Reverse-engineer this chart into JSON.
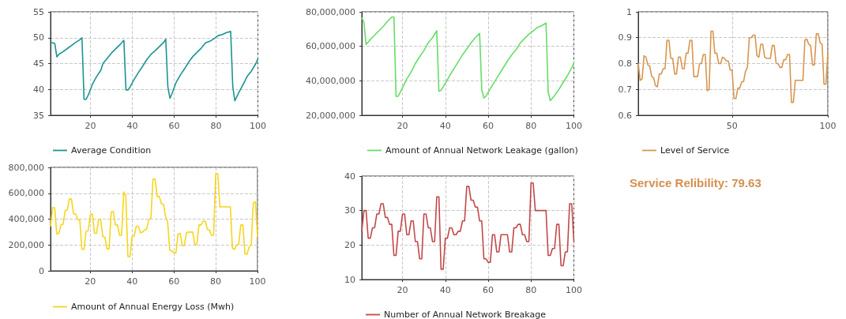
{
  "chart_data": [
    {
      "type": "line",
      "x": [
        1,
        2,
        3,
        4,
        5,
        7,
        9,
        11,
        13,
        15,
        16,
        17,
        18,
        19,
        21,
        23,
        25,
        26,
        28,
        30,
        32,
        34,
        36,
        37,
        38,
        39,
        41,
        43,
        45,
        47,
        49,
        51,
        53,
        55,
        56,
        57,
        58,
        59,
        61,
        63,
        65,
        67,
        69,
        71,
        73,
        75,
        77,
        79,
        81,
        83,
        85,
        87,
        88,
        89,
        91,
        93,
        95,
        97,
        99,
        100
      ],
      "series": [
        {
          "name": "Average Condition",
          "color": "#1a9393",
          "values": [
            49.1,
            49,
            48.9,
            46.3,
            46.8,
            47.3,
            47.9,
            48.5,
            49.1,
            49.6,
            50,
            38.1,
            38.1,
            38.9,
            41,
            42.5,
            43.7,
            45,
            46,
            47,
            47.8,
            48.6,
            49.5,
            39.9,
            39.9,
            40.5,
            42,
            43.3,
            44.5,
            45.8,
            46.8,
            47.5,
            48.3,
            49.1,
            49.7,
            40.5,
            38.3,
            39.2,
            41.4,
            42.8,
            44,
            45.3,
            46.4,
            47.2,
            48,
            49,
            49.3,
            49.8,
            50.4,
            50.6,
            51,
            51.2,
            40.5,
            37.8,
            39.5,
            41,
            42.6,
            43.6,
            45,
            45.9
          ]
        }
      ],
      "xlim": [
        1,
        100
      ],
      "xticks": [
        20,
        40,
        60,
        80,
        100
      ],
      "ylim": [
        35,
        55
      ],
      "yticks": [
        35,
        40,
        45,
        50,
        55
      ],
      "grid": true,
      "legend": "bottom",
      "marker": "none"
    },
    {
      "type": "line",
      "x": [
        1,
        2,
        3,
        5,
        7,
        9,
        11,
        13,
        15,
        16,
        17,
        18,
        20,
        22,
        24,
        26,
        28,
        30,
        32,
        34,
        36,
        37,
        38,
        40,
        42,
        44,
        46,
        48,
        50,
        52,
        54,
        56,
        57,
        58,
        59,
        61,
        63,
        65,
        67,
        69,
        71,
        73,
        75,
        77,
        79,
        81,
        83,
        85,
        87,
        88,
        89,
        91,
        93,
        95,
        97,
        99,
        100
      ],
      "series": [
        {
          "name": "Amount of Annual Network Leakage (gallon)",
          "color": "#66dd66",
          "values": [
            76500000,
            74000000,
            61000000,
            64000000,
            66500000,
            69000000,
            71500000,
            74500000,
            77000000,
            77000000,
            31000000,
            31000000,
            36000000,
            41000000,
            45000000,
            50000000,
            54000000,
            57500000,
            62000000,
            65000000,
            69000000,
            34000000,
            34500000,
            38500000,
            43000000,
            47000000,
            51000000,
            55000000,
            58500000,
            62000000,
            65000000,
            67500000,
            35000000,
            30000000,
            31000000,
            35500000,
            39500000,
            43500000,
            47500000,
            51500000,
            55000000,
            58000000,
            62000000,
            64500000,
            67000000,
            69000000,
            71000000,
            72000000,
            73500000,
            33500000,
            28500000,
            31500000,
            35000000,
            39000000,
            43000000,
            47500000,
            50500000
          ]
        }
      ],
      "xlim": [
        1,
        100
      ],
      "xticks": [
        20,
        40,
        60,
        80,
        100
      ],
      "ylim": [
        20000000,
        80000000
      ],
      "yticks": [
        {
          "value": 20000000,
          "label": "20,000,000"
        },
        {
          "value": 40000000,
          "label": "40,000,000"
        },
        {
          "value": 60000000,
          "label": "60,000,000"
        },
        {
          "value": 80000000,
          "label": "80,000,000"
        }
      ],
      "grid": true,
      "legend": "bottom",
      "marker": "none"
    },
    {
      "type": "line",
      "x": [
        1,
        2,
        3,
        4,
        5,
        6,
        7,
        8,
        9,
        10,
        11,
        12,
        13,
        14,
        15,
        16,
        17,
        18,
        19,
        20,
        21,
        22,
        23,
        24,
        25,
        26,
        27,
        28,
        29,
        30,
        32,
        33,
        34,
        35,
        36,
        37,
        38,
        39,
        40,
        41,
        42,
        43,
        44,
        45,
        46,
        47,
        48,
        49,
        50,
        51,
        52,
        53,
        54,
        55,
        56,
        57,
        58,
        59,
        60,
        61,
        62,
        63,
        64,
        65,
        66,
        67,
        68,
        70,
        71,
        72,
        73,
        74,
        75,
        76,
        77,
        78,
        79,
        80,
        81,
        82,
        83,
        87,
        88,
        89,
        90,
        91,
        92,
        93,
        94,
        95,
        96,
        97,
        98,
        99,
        100
      ],
      "series": [
        {
          "name": "Level of Service",
          "color": "#d9954f",
          "values": [
            0.8,
            0.735,
            0.74,
            0.83,
            0.825,
            0.795,
            0.79,
            0.75,
            0.745,
            0.715,
            0.71,
            0.76,
            0.76,
            0.78,
            0.78,
            0.89,
            0.89,
            0.82,
            0.82,
            0.76,
            0.76,
            0.825,
            0.825,
            0.78,
            0.78,
            0.84,
            0.84,
            0.89,
            0.89,
            0.75,
            0.75,
            0.8,
            0.8,
            0.835,
            0.835,
            0.695,
            0.7,
            0.925,
            0.925,
            0.84,
            0.84,
            0.8,
            0.8,
            0.825,
            0.82,
            0.81,
            0.81,
            0.775,
            0.775,
            0.665,
            0.665,
            0.705,
            0.705,
            0.73,
            0.73,
            0.77,
            0.785,
            0.9,
            0.9,
            0.91,
            0.91,
            0.83,
            0.825,
            0.875,
            0.875,
            0.825,
            0.82,
            0.82,
            0.87,
            0.87,
            0.8,
            0.8,
            0.785,
            0.785,
            0.815,
            0.815,
            0.835,
            0.835,
            0.65,
            0.65,
            0.735,
            0.735,
            0.89,
            0.895,
            0.875,
            0.87,
            0.795,
            0.795,
            0.915,
            0.915,
            0.88,
            0.875,
            0.72,
            0.72,
            0.84
          ]
        }
      ],
      "xlim": [
        1,
        100
      ],
      "xticks": [
        50,
        100
      ],
      "ylim": [
        0.6,
        1
      ],
      "yticks": [
        0.6,
        0.7,
        0.8,
        0.9,
        1
      ],
      "grid": true,
      "legend": "bottom",
      "marker": "none"
    },
    {
      "type": "line",
      "x": [
        1,
        2,
        3,
        4,
        5,
        6,
        7,
        8,
        9,
        10,
        11,
        12,
        13,
        14,
        15,
        16,
        17,
        18,
        19,
        20,
        21,
        22,
        23,
        24,
        25,
        26,
        27,
        28,
        29,
        30,
        31,
        32,
        33,
        34,
        35,
        36,
        37,
        38,
        39,
        40,
        41,
        42,
        43,
        44,
        45,
        46,
        47,
        48,
        49,
        50,
        51,
        52,
        53,
        54,
        55,
        56,
        57,
        58,
        59,
        60,
        61,
        62,
        63,
        64,
        65,
        66,
        67,
        68,
        69,
        70,
        71,
        72,
        73,
        74,
        75,
        76,
        77,
        78,
        79,
        80,
        81,
        82,
        87,
        88,
        89,
        90,
        91,
        92,
        93,
        94,
        95,
        96,
        97,
        98,
        99,
        100
      ],
      "series": [
        {
          "name": "Amount of Annual Energy Loss (Mwh)",
          "color": "#f7d51d",
          "values": [
            345000,
            490000,
            485000,
            285000,
            290000,
            355000,
            360000,
            465000,
            470000,
            555000,
            555000,
            440000,
            440000,
            395000,
            390000,
            165000,
            165000,
            305000,
            310000,
            435000,
            440000,
            290000,
            290000,
            400000,
            395000,
            265000,
            260000,
            170000,
            170000,
            455000,
            460000,
            355000,
            355000,
            275000,
            275000,
            610000,
            580000,
            110000,
            110000,
            265000,
            270000,
            345000,
            345000,
            295000,
            300000,
            315000,
            325000,
            395000,
            405000,
            710000,
            710000,
            575000,
            575000,
            520000,
            515000,
            420000,
            380000,
            160000,
            155000,
            140000,
            140000,
            285000,
            290000,
            195000,
            195000,
            295000,
            300000,
            300000,
            300000,
            205000,
            205000,
            355000,
            355000,
            385000,
            385000,
            320000,
            315000,
            275000,
            275000,
            750000,
            750000,
            495000,
            495000,
            175000,
            165000,
            200000,
            205000,
            355000,
            355000,
            130000,
            130000,
            185000,
            205000,
            525000,
            535000,
            260000
          ]
        }
      ],
      "xlim": [
        1,
        100
      ],
      "xticks": [
        20,
        40,
        60,
        80,
        100
      ],
      "ylim": [
        0,
        800000
      ],
      "yticks": [
        0,
        {
          "value": 200000,
          "label": "200,000"
        },
        {
          "value": 400000,
          "label": "400,000"
        },
        {
          "value": 600000,
          "label": "600,000"
        },
        {
          "value": 800000,
          "label": "800,000"
        }
      ],
      "grid": true,
      "legend": "bottom",
      "marker": "none"
    },
    {
      "type": "line",
      "x": [
        1,
        2,
        3,
        4,
        5,
        6,
        7,
        8,
        9,
        10,
        11,
        12,
        13,
        14,
        15,
        16,
        17,
        18,
        19,
        20,
        21,
        22,
        23,
        24,
        25,
        26,
        27,
        28,
        29,
        30,
        31,
        32,
        33,
        34,
        35,
        36,
        37,
        38,
        39,
        40,
        41,
        42,
        43,
        44,
        45,
        46,
        47,
        48,
        49,
        50,
        51,
        52,
        53,
        54,
        55,
        56,
        57,
        58,
        59,
        60,
        61,
        62,
        63,
        64,
        65,
        66,
        69,
        70,
        71,
        72,
        73,
        74,
        75,
        76,
        77,
        78,
        79,
        80,
        81,
        82,
        87,
        88,
        89,
        90,
        91,
        92,
        93,
        94,
        95,
        96,
        97,
        98,
        99,
        100
      ],
      "series": [
        {
          "name": "Number of Annual Network Breakage",
          "color": "#c24848",
          "values": [
            24,
            30,
            30,
            22,
            22,
            25,
            25,
            29,
            29,
            32,
            32,
            28,
            28,
            26,
            26,
            17,
            17,
            24,
            24,
            29,
            29,
            23,
            23,
            27,
            27,
            21,
            21,
            16,
            16,
            29,
            29,
            25,
            25,
            21,
            21,
            34,
            34,
            13,
            13,
            22,
            22,
            25,
            25,
            23,
            23,
            24,
            24,
            27,
            27,
            37,
            37,
            33,
            33,
            31,
            31,
            27,
            27,
            16,
            16,
            15,
            15,
            23,
            23,
            18,
            18,
            23,
            23,
            18,
            18,
            25,
            25,
            26,
            26,
            23,
            23,
            21,
            21,
            38,
            38,
            30,
            30,
            17,
            17,
            19,
            19,
            26,
            26,
            14,
            14,
            18,
            18,
            32,
            32,
            21
          ]
        }
      ],
      "xlim": [
        1,
        100
      ],
      "xticks": [
        20,
        40,
        60,
        80,
        100
      ],
      "ylim": [
        10,
        40
      ],
      "yticks": [
        10,
        20,
        30,
        40
      ],
      "grid": true,
      "legend": "bottom",
      "marker": "none"
    },
    {
      "type": "other",
      "title": "Service Relibility: 79.63"
    }
  ]
}
